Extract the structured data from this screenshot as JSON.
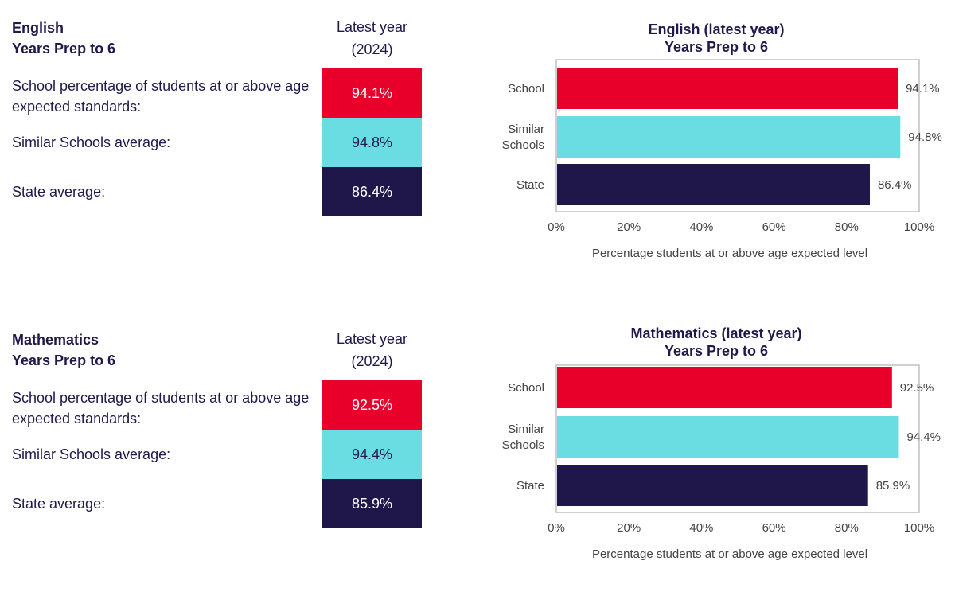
{
  "colors": {
    "school": "#e8002a",
    "similar": "#6adde3",
    "state": "#1f1649",
    "text": "#1f1a4b",
    "axis": "#c0c0c0"
  },
  "sections": [
    {
      "subject": "English",
      "years": "Years Prep to 6",
      "latest_label": "Latest year",
      "latest_year": "(2024)",
      "rows": [
        {
          "label": "School percentage of students at or above age expected standards:",
          "value": "94.1%"
        },
        {
          "label": "Similar Schools average:",
          "value": "94.8%"
        },
        {
          "label": "State average:",
          "value": "86.4%"
        }
      ]
    },
    {
      "subject": "Mathematics",
      "years": "Years Prep to 6",
      "latest_label": "Latest year",
      "latest_year": "(2024)",
      "rows": [
        {
          "label": "School percentage of students at or above age expected standards:",
          "value": "92.5%"
        },
        {
          "label": "Similar Schools average:",
          "value": "94.4%"
        },
        {
          "label": "State average:",
          "value": "85.9%"
        }
      ]
    }
  ],
  "chart_data": [
    {
      "type": "bar",
      "orientation": "horizontal",
      "title": "English (latest year)",
      "subtitle": "Years Prep to 6",
      "categories": [
        "School",
        "Similar\nSchools",
        "State"
      ],
      "values": [
        94.1,
        94.8,
        86.4
      ],
      "value_labels": [
        "94.1%",
        "94.8%",
        "86.4%"
      ],
      "xlim": [
        0,
        100
      ],
      "xticks": [
        "0%",
        "20%",
        "40%",
        "60%",
        "80%",
        "100%"
      ],
      "xlabel": "Percentage students at or above age expected level",
      "grid": false
    },
    {
      "type": "bar",
      "orientation": "horizontal",
      "title": "Mathematics (latest year)",
      "subtitle": "Years Prep to 6",
      "categories": [
        "School",
        "Similar\nSchools",
        "State"
      ],
      "values": [
        92.5,
        94.4,
        85.9
      ],
      "value_labels": [
        "92.5%",
        "94.4%",
        "85.9%"
      ],
      "xlim": [
        0,
        100
      ],
      "xticks": [
        "0%",
        "20%",
        "40%",
        "60%",
        "80%",
        "100%"
      ],
      "xlabel": "Percentage students at or above age expected level",
      "grid": false
    }
  ]
}
